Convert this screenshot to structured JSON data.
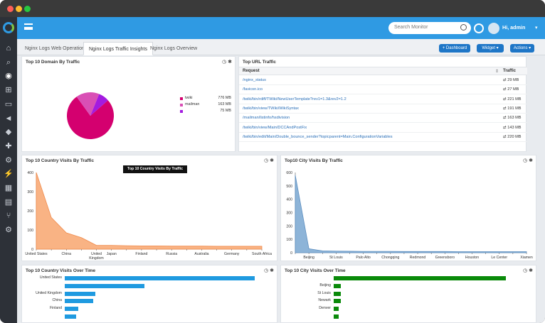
{
  "window": {
    "traffic_lights": [
      "#ff5f57",
      "#febc2e",
      "#28c840"
    ]
  },
  "topbar": {
    "search_placeholder": "Search Monitor",
    "user_greeting": "Hi, admin"
  },
  "sidebar": {
    "icons": [
      "home-icon",
      "search-icon",
      "dashboard-icon",
      "hierarchy-icon",
      "monitor-icon",
      "megaphone-icon",
      "bell-icon",
      "plugin-icon",
      "settings-icon",
      "lightning-icon",
      "calendar-icon",
      "report-icon",
      "flow-icon",
      "gear-icon"
    ]
  },
  "tabs": [
    {
      "label": "Nginx Logs Web Operations",
      "active": false
    },
    {
      "label": "Nginx Logs Traffic Insights",
      "active": true
    },
    {
      "label": "Nginx Logs Overview",
      "active": false
    }
  ],
  "actions": {
    "dashboard": "+ Dashboard",
    "widget": "Widget ▾",
    "actions": "Actions ▾"
  },
  "domain_panel": {
    "title": "Top 10 Domain By Traffic",
    "legend": [
      {
        "name": "twiki",
        "value": "776 MB",
        "color": "#d4006f"
      },
      {
        "name": "mailman",
        "value": "163 MB",
        "color": "#d94fb5"
      },
      {
        "name": "",
        "value": "75 MB",
        "color": "#a31be0"
      }
    ]
  },
  "url_panel": {
    "title": "Top URL Traffic",
    "headers": {
      "request": "Request",
      "traffic": "Traffic"
    },
    "rows": [
      {
        "request": "/nginx_status",
        "traffic": "⇄ 29 MB"
      },
      {
        "request": "/favicon.ico",
        "traffic": "⇄ 27 MB"
      },
      {
        "request": "/twiki/bin/rdiff/TWiki/NewUserTemplate?rev1=1.3&rev2=1.2",
        "traffic": "⇄ 221 MB"
      },
      {
        "request": "/twiki/bin/view/TWiki/WikiSyntax",
        "traffic": "⇄ 191 MB"
      },
      {
        "request": "/mailman/listinfo/hsdivision",
        "traffic": "⇄ 163 MB"
      },
      {
        "request": "/twiki/bin/view/Main/DCCAndPostFix",
        "traffic": "⇄ 143 MB"
      },
      {
        "request": "/twiki/bin/edit/Main/Double_bounce_sender?topicparent=Main.ConfigurationVariables",
        "traffic": "⇄ 220 MB"
      }
    ]
  },
  "country_panel": {
    "title": "Top 10 Country Visits By Traffic",
    "tooltip": "Top 10 Country Visits By Traffic"
  },
  "city_panel": {
    "title": "Top10 City Visits By Traffic"
  },
  "country_time_panel": {
    "title": "Top 10 Country Visits Over Time",
    "bars": [
      {
        "label": "United States",
        "value": 100
      },
      {
        "label": "",
        "value": 42
      },
      {
        "label": "United Kingdom",
        "value": 16
      },
      {
        "label": "China",
        "value": 15
      },
      {
        "label": "Finland",
        "value": 7
      },
      {
        "label": "",
        "value": 6
      }
    ],
    "color": "#1f9ae0"
  },
  "city_time_panel": {
    "title": "Top 10 City Visits Over Time",
    "bars": [
      {
        "label": "",
        "value": 100
      },
      {
        "label": "Beijing",
        "value": 4
      },
      {
        "label": "St Louis",
        "value": 4
      },
      {
        "label": "Newark",
        "value": 4
      },
      {
        "label": "Denver",
        "value": 3
      },
      {
        "label": "",
        "value": 3
      }
    ],
    "color": "#0a8a0a"
  },
  "chart_data": [
    {
      "type": "pie",
      "title": "Top 10 Domain By Traffic",
      "categories": [
        "twiki",
        "mailman",
        ""
      ],
      "values": [
        776,
        163,
        75
      ],
      "colors": [
        "#d4006f",
        "#d94fb5",
        "#a31be0"
      ]
    },
    {
      "type": "area",
      "title": "Top 10 Country Visits By Traffic",
      "categories": [
        "United States",
        "",
        "China",
        "",
        "United Kingdom",
        "Japan",
        "",
        "Finland",
        "",
        "Russia",
        "",
        "Australia",
        "",
        "Germany",
        "",
        "South Africa"
      ],
      "values": [
        400,
        165,
        85,
        60,
        20,
        20,
        18,
        17,
        17,
        16,
        16,
        16,
        15,
        15,
        15,
        15
      ],
      "ylim": [
        0,
        400
      ],
      "yticks": [
        0,
        100,
        200,
        300,
        400
      ],
      "color": "#f9b384"
    },
    {
      "type": "area",
      "title": "Top10 City Visits By Traffic",
      "categories": [
        "",
        "Beijing",
        "",
        "St Louis",
        "",
        "Palo Alto",
        "",
        "Chongqing",
        "",
        "Redmond",
        "",
        "Greensboro",
        "",
        "Houston",
        "",
        "Le Center",
        "",
        "Xiamen"
      ],
      "values": [
        580,
        30,
        14,
        12,
        11,
        10,
        10,
        10,
        9,
        9,
        9,
        9,
        8,
        8,
        8,
        8,
        8,
        8
      ],
      "ylim": [
        0,
        600
      ],
      "yticks": [
        0,
        100,
        200,
        300,
        400,
        500,
        600
      ],
      "color": "#8db4d8"
    }
  ]
}
